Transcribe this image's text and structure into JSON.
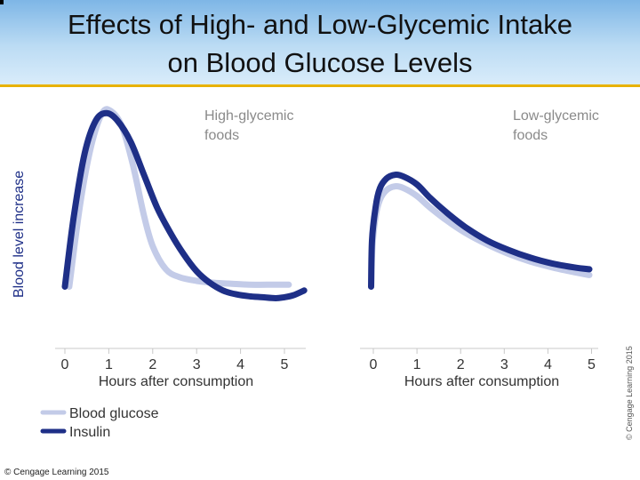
{
  "title_line1": "Effects of High- and Low-Glycemic Intake",
  "title_line2": "on Blood Glucose Levels",
  "footer_credit": "© Cengage Learning 2015",
  "side_credit": "© Cengage Learning 2015",
  "colors": {
    "glucose": "#c3cbe8",
    "insulin": "#1e2f87",
    "header_accent": "#e8b200"
  },
  "chart_data": [
    {
      "type": "line",
      "title": "High-glycemic foods",
      "title_lines": [
        "High-glycemic",
        "foods"
      ],
      "xlabel": "Hours after consumption",
      "ylabel": "Blood level increase",
      "xlim": [
        0,
        5.5
      ],
      "ylim": [
        0,
        1
      ],
      "xticks": [
        0,
        1,
        2,
        3,
        4,
        5
      ],
      "legend": "bottom-left",
      "series": [
        {
          "name": "Blood glucose",
          "x": [
            0.1,
            0.35,
            0.6,
            0.85,
            1.05,
            1.3,
            1.55,
            1.8,
            2.0,
            2.3,
            2.6,
            3.0,
            3.4,
            3.8,
            4.2,
            4.6,
            5.1
          ],
          "y": [
            0.09,
            0.52,
            0.82,
            0.99,
            1.0,
            0.92,
            0.72,
            0.46,
            0.3,
            0.18,
            0.14,
            0.12,
            0.11,
            0.105,
            0.1,
            0.1,
            0.1
          ]
        },
        {
          "name": "Insulin",
          "x": [
            0,
            0.2,
            0.45,
            0.7,
            0.95,
            1.2,
            1.5,
            1.8,
            2.1,
            2.4,
            2.7,
            3.0,
            3.3,
            3.6,
            3.9,
            4.2,
            4.5,
            4.8,
            5.0,
            5.2,
            5.45
          ],
          "y": [
            0.09,
            0.45,
            0.78,
            0.95,
            0.99,
            0.95,
            0.84,
            0.67,
            0.5,
            0.37,
            0.26,
            0.17,
            0.11,
            0.07,
            0.05,
            0.04,
            0.035,
            0.03,
            0.035,
            0.045,
            0.07
          ]
        }
      ]
    },
    {
      "type": "line",
      "title": "Low-glycemic foods",
      "title_lines": [
        "Low-glycemic",
        "foods"
      ],
      "xlabel": "Hours after consumption",
      "ylabel": "",
      "xlim": [
        0,
        5.5
      ],
      "ylim": [
        0,
        1
      ],
      "xticks": [
        0,
        1,
        2,
        3,
        4,
        5
      ],
      "series": [
        {
          "name": "Blood glucose",
          "x": [
            -0.05,
            -0.02,
            0.05,
            0.15,
            0.3,
            0.5,
            0.7,
            1.0,
            1.3,
            1.7,
            2.1,
            2.6,
            3.1,
            3.6,
            4.1,
            4.6,
            4.95
          ],
          "y": [
            0.09,
            0.3,
            0.45,
            0.54,
            0.59,
            0.61,
            0.6,
            0.56,
            0.5,
            0.43,
            0.37,
            0.31,
            0.26,
            0.22,
            0.19,
            0.165,
            0.15
          ]
        },
        {
          "name": "Insulin",
          "x": [
            -0.05,
            -0.03,
            0.05,
            0.15,
            0.3,
            0.5,
            0.7,
            1.0,
            1.3,
            1.7,
            2.1,
            2.6,
            3.1,
            3.6,
            4.1,
            4.6,
            4.95
          ],
          "y": [
            0.09,
            0.33,
            0.5,
            0.6,
            0.65,
            0.67,
            0.66,
            0.62,
            0.55,
            0.47,
            0.4,
            0.33,
            0.28,
            0.24,
            0.21,
            0.19,
            0.18
          ]
        }
      ]
    }
  ]
}
